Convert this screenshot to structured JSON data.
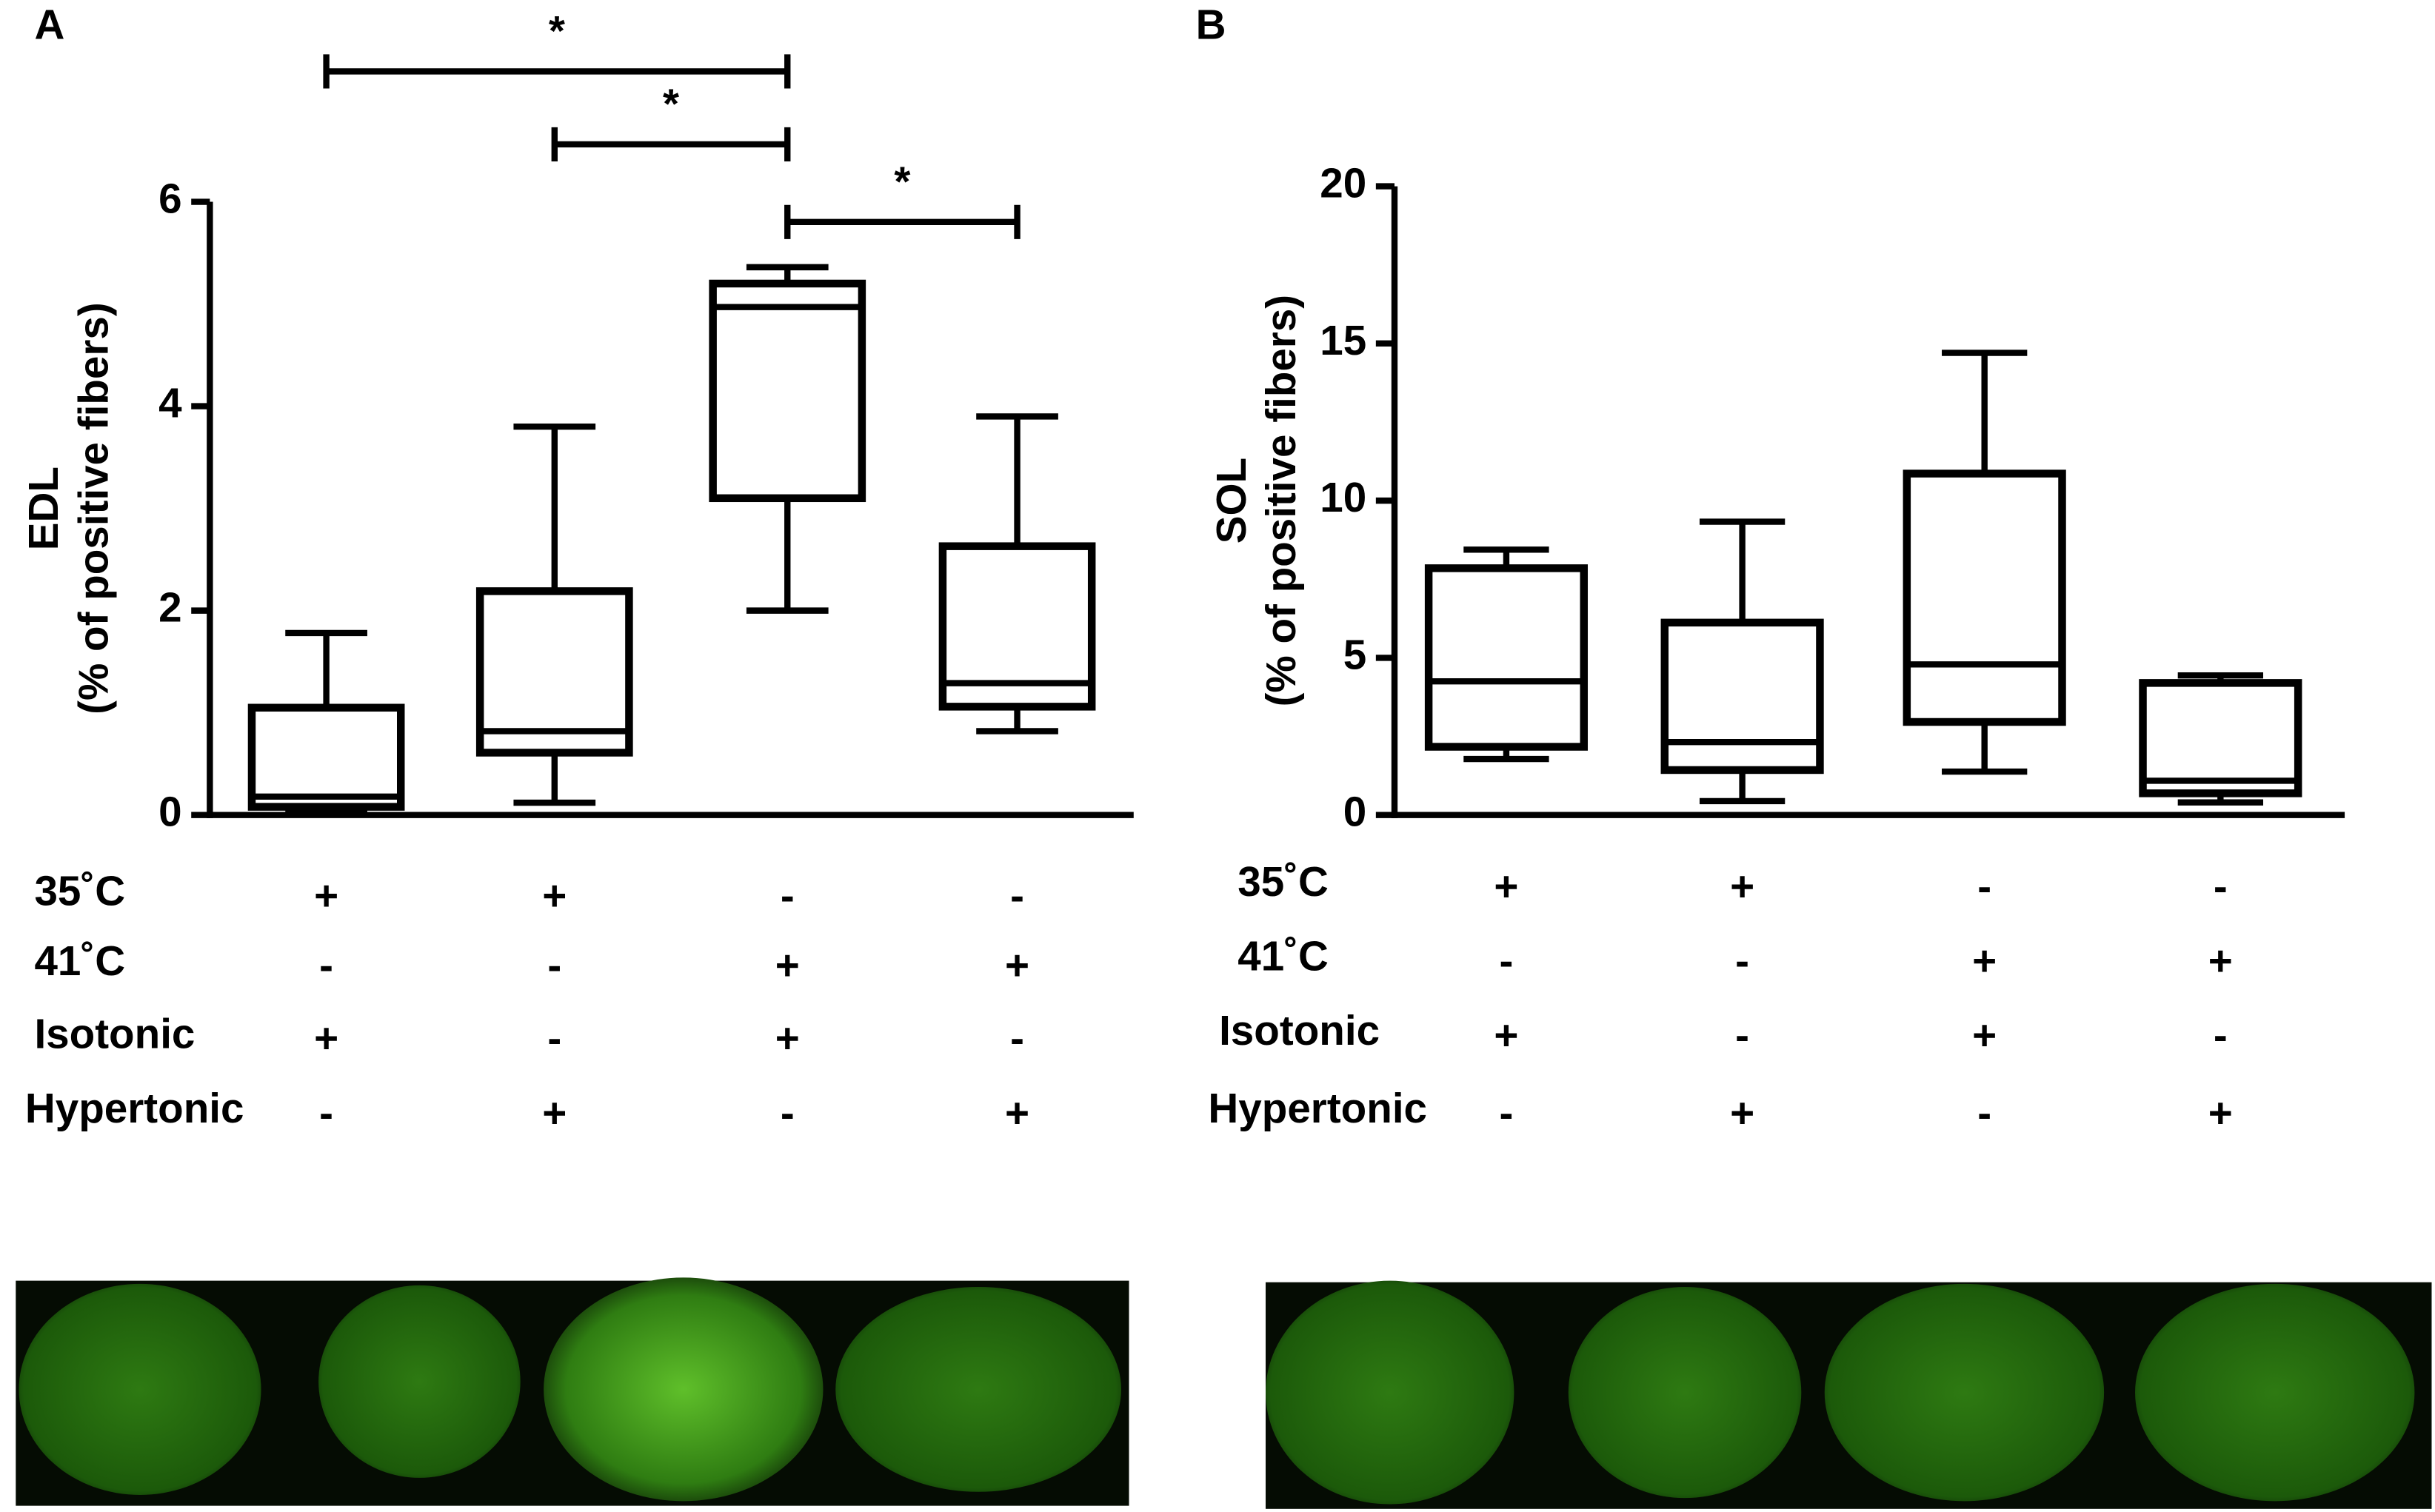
{
  "chart_data": [
    {
      "type": "box",
      "panel_label": "A",
      "ylabel": [
        "EDL",
        "(% of positive fibers)"
      ],
      "ylim": [
        0,
        6
      ],
      "yticks": [
        0,
        2,
        4,
        6
      ],
      "color": "#000000",
      "stats": [
        {
          "min": 0.05,
          "q1": 0.08,
          "median": 0.18,
          "q3": 1.05,
          "max": 1.78
        },
        {
          "min": 0.12,
          "q1": 0.61,
          "median": 0.82,
          "q3": 2.19,
          "max": 3.8
        },
        {
          "min": 2.0,
          "q1": 3.1,
          "median": 4.97,
          "q3": 5.2,
          "max": 5.36
        },
        {
          "min": 0.82,
          "q1": 1.06,
          "median": 1.29,
          "q3": 2.63,
          "max": 3.9
        }
      ],
      "conditions": {
        "labels": [
          "35˚C",
          "41˚C",
          "Isotonic",
          "Hypertonic"
        ],
        "values": [
          [
            "+",
            "+",
            "-",
            "-"
          ],
          [
            "-",
            "-",
            "+",
            "+"
          ],
          [
            "+",
            "-",
            "+",
            "-"
          ],
          [
            "-",
            "+",
            "-",
            "+"
          ]
        ]
      },
      "significance": [
        {
          "from": 0,
          "to": 2,
          "label": "*"
        },
        {
          "from": 1,
          "to": 2,
          "label": "*"
        },
        {
          "from": 2,
          "to": 3,
          "label": "*"
        }
      ]
    },
    {
      "type": "box",
      "panel_label": "B",
      "ylabel": [
        "SOL",
        "(% of positive fibers)"
      ],
      "ylim": [
        0,
        20
      ],
      "yticks": [
        0,
        5,
        10,
        15,
        20
      ],
      "color": "#000000",
      "stats": [
        {
          "min": 1.78,
          "q1": 2.17,
          "median": 4.25,
          "q3": 7.85,
          "max": 8.44
        },
        {
          "min": 0.44,
          "q1": 1.43,
          "median": 2.32,
          "q3": 6.12,
          "max": 9.33
        },
        {
          "min": 1.38,
          "q1": 2.96,
          "median": 4.79,
          "q3": 10.86,
          "max": 14.7
        },
        {
          "min": 0.4,
          "q1": 0.69,
          "median": 1.09,
          "q3": 4.2,
          "max": 4.44
        }
      ],
      "conditions": {
        "labels": [
          "35˚C",
          "41˚C",
          "Isotonic",
          "Hypertonic"
        ],
        "values": [
          [
            "+",
            "+",
            "-",
            "-"
          ],
          [
            "-",
            "-",
            "+",
            "+"
          ],
          [
            "+",
            "-",
            "+",
            "-"
          ],
          [
            "-",
            "+",
            "-",
            "+"
          ]
        ]
      },
      "significance": []
    }
  ]
}
